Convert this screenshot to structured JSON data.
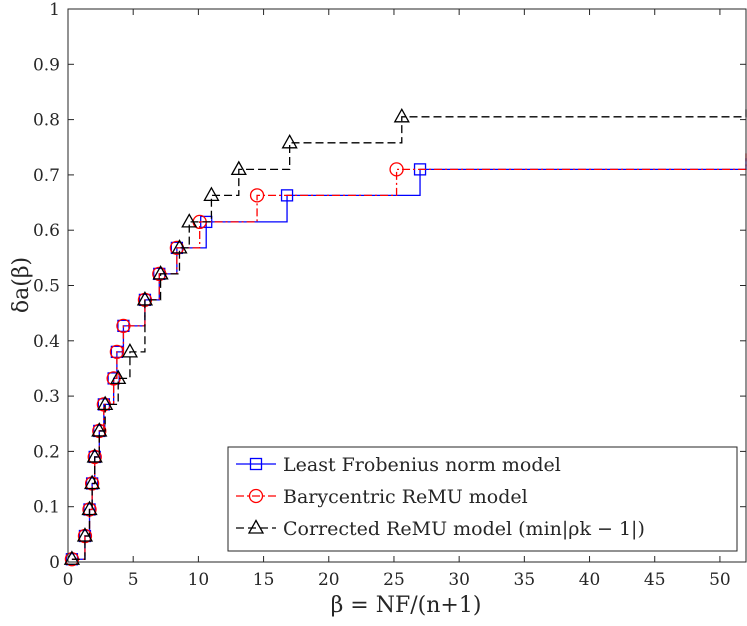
{
  "chart_data": {
    "type": "line",
    "xlabel": "β = NF/(n+1)",
    "ylabel": "δa(β)",
    "xlim": [
      0,
      52
    ],
    "ylim": [
      0,
      1
    ],
    "x_ticks": [
      0,
      5,
      10,
      15,
      20,
      25,
      30,
      35,
      40,
      45,
      50
    ],
    "y_ticks": [
      0,
      0.1,
      0.2,
      0.3,
      0.4,
      0.5,
      0.6,
      0.7,
      0.8,
      0.9,
      1
    ],
    "x_tick_labels": [
      "0",
      "5",
      "10",
      "15",
      "20",
      "25",
      "30",
      "35",
      "40",
      "45",
      "50"
    ],
    "y_tick_labels": [
      "0",
      "0.1",
      "0.2",
      "0.3",
      "0.4",
      "0.5",
      "0.6",
      "0.7",
      "0.8",
      "0.9",
      "1"
    ],
    "grid": false,
    "legend_position": "bottom-right",
    "series": [
      {
        "name": "Least Frobenius norm model",
        "color": "#0000ff",
        "line_style": "solid",
        "marker": "square",
        "x": [
          0.3,
          1.3,
          1.65,
          1.85,
          2.05,
          2.4,
          2.75,
          3.5,
          3.75,
          4.25,
          4.6,
          5.9,
          7,
          8.35,
          10.6,
          16.8,
          27,
          52
        ],
        "y": [
          0.005,
          0.047,
          0.095,
          0.142,
          0.19,
          0.237,
          0.285,
          0.332,
          0.38,
          0.427,
          0.427,
          0.474,
          0.521,
          0.568,
          0.615,
          0.663,
          0.71,
          0.73
        ],
        "marker_x": [
          0.3,
          1.3,
          1.65,
          1.85,
          2.05,
          2.4,
          2.75,
          3.5,
          3.75,
          4.25,
          5.9,
          7,
          8.35,
          10.6,
          16.8,
          27
        ],
        "marker_y": [
          0.005,
          0.047,
          0.095,
          0.142,
          0.19,
          0.237,
          0.285,
          0.332,
          0.38,
          0.427,
          0.474,
          0.521,
          0.568,
          0.615,
          0.663,
          0.71
        ]
      },
      {
        "name": "Barycentric ReMU model",
        "color": "#ff0000",
        "line_style": "dash-dot",
        "marker": "circle",
        "x": [
          0.3,
          1.3,
          1.65,
          1.85,
          2.05,
          2.4,
          2.75,
          3.5,
          3.75,
          4.25,
          5.9,
          7,
          8.35,
          10.1,
          14.5,
          25.2,
          52
        ],
        "y": [
          0.005,
          0.047,
          0.095,
          0.142,
          0.19,
          0.237,
          0.285,
          0.332,
          0.38,
          0.427,
          0.474,
          0.521,
          0.568,
          0.615,
          0.663,
          0.71,
          0.742
        ],
        "marker_x": [
          0.3,
          1.3,
          1.65,
          1.85,
          2.05,
          2.4,
          2.75,
          3.5,
          3.75,
          4.25,
          5.9,
          7,
          8.35,
          10.1,
          14.5,
          25.2
        ],
        "marker_y": [
          0.005,
          0.047,
          0.095,
          0.142,
          0.19,
          0.237,
          0.285,
          0.332,
          0.38,
          0.427,
          0.474,
          0.521,
          0.568,
          0.615,
          0.663,
          0.71
        ]
      },
      {
        "name": "Corrected ReMU model (min|ρk − 1|)",
        "color": "#000000",
        "line_style": "dashed",
        "marker": "triangle",
        "x": [
          0.3,
          1.3,
          1.65,
          1.85,
          2.05,
          2.4,
          2.85,
          3.85,
          4.75,
          5.9,
          7.1,
          8.55,
          9.3,
          11,
          13.1,
          17,
          25.6,
          52
        ],
        "y": [
          0.005,
          0.047,
          0.095,
          0.142,
          0.19,
          0.237,
          0.285,
          0.332,
          0.38,
          0.474,
          0.521,
          0.568,
          0.615,
          0.663,
          0.71,
          0.758,
          0.805,
          0.823
        ],
        "marker_x": [
          0.3,
          1.3,
          1.65,
          1.85,
          2.05,
          2.4,
          2.85,
          3.85,
          4.75,
          5.9,
          7.1,
          8.55,
          9.3,
          11,
          13.1,
          17,
          25.6
        ],
        "marker_y": [
          0.005,
          0.047,
          0.095,
          0.142,
          0.19,
          0.237,
          0.285,
          0.332,
          0.38,
          0.474,
          0.521,
          0.568,
          0.615,
          0.663,
          0.71,
          0.758,
          0.805
        ]
      }
    ]
  }
}
